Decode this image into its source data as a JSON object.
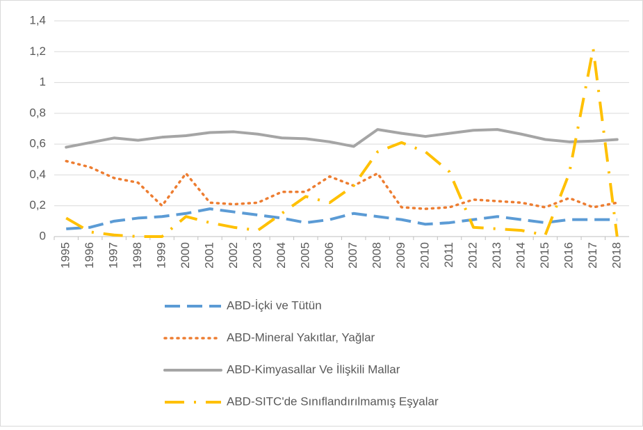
{
  "chart_data": {
    "type": "line",
    "categories": [
      "1995",
      "1996",
      "1997",
      "1998",
      "1999",
      "2000",
      "2001",
      "2002",
      "2003",
      "2004",
      "2005",
      "2006",
      "2007",
      "2008",
      "2009",
      "2010",
      "2011",
      "2012",
      "2013",
      "2014",
      "2015",
      "2016",
      "2017",
      "2018"
    ],
    "series": [
      {
        "name": "ABD-İçki ve Tütün",
        "color": "#5b9bd5",
        "dash": "dashed",
        "values": [
          0.05,
          0.06,
          0.1,
          0.12,
          0.13,
          0.15,
          0.18,
          0.16,
          0.14,
          0.12,
          0.09,
          0.11,
          0.15,
          0.13,
          0.11,
          0.08,
          0.09,
          0.11,
          0.13,
          0.11,
          0.09,
          0.11,
          0.11,
          0.11
        ]
      },
      {
        "name": "ABD-Mineral Yakıtlar, Yağlar",
        "color": "#ed7d31",
        "dash": "dotted",
        "values": [
          0.49,
          0.45,
          0.38,
          0.35,
          0.2,
          0.41,
          0.22,
          0.21,
          0.22,
          0.29,
          0.29,
          0.39,
          0.33,
          0.41,
          0.19,
          0.18,
          0.19,
          0.24,
          0.23,
          0.22,
          0.19,
          0.25,
          0.19,
          0.22
        ]
      },
      {
        "name": "ABD-Kimyasallar Ve İlişkili Mallar",
        "color": "#a5a5a5",
        "dash": "solid",
        "values": [
          0.58,
          0.61,
          0.64,
          0.625,
          0.645,
          0.655,
          0.675,
          0.68,
          0.665,
          0.64,
          0.635,
          0.615,
          0.585,
          0.695,
          0.67,
          0.65,
          0.67,
          0.69,
          0.695,
          0.665,
          0.63,
          0.615,
          0.62,
          0.63
        ]
      },
      {
        "name": "ABD-SITC'de Sınıflandırılmamış Eşyalar",
        "color": "#ffc000",
        "dash": "dashdot",
        "values": [
          0.12,
          0.03,
          0.01,
          0.0,
          0.0,
          0.13,
          0.09,
          0.06,
          0.04,
          0.15,
          0.26,
          0.22,
          0.33,
          0.55,
          0.61,
          0.55,
          0.42,
          0.06,
          0.05,
          0.04,
          0.01,
          0.41,
          1.22,
          0.0
        ]
      }
    ],
    "ylim": [
      0,
      1.4
    ],
    "yticks": [
      0,
      {
        "value": 0.2,
        "label": "0,2"
      },
      {
        "value": 0.4,
        "label": "0,4"
      },
      {
        "value": 0.6,
        "label": "0,6"
      },
      {
        "value": 0.8,
        "label": "0,8"
      },
      1,
      {
        "value": 1.2,
        "label": "1,2"
      },
      {
        "value": 1.4,
        "label": "1,4"
      }
    ],
    "grid": true,
    "legend": "bottom"
  }
}
